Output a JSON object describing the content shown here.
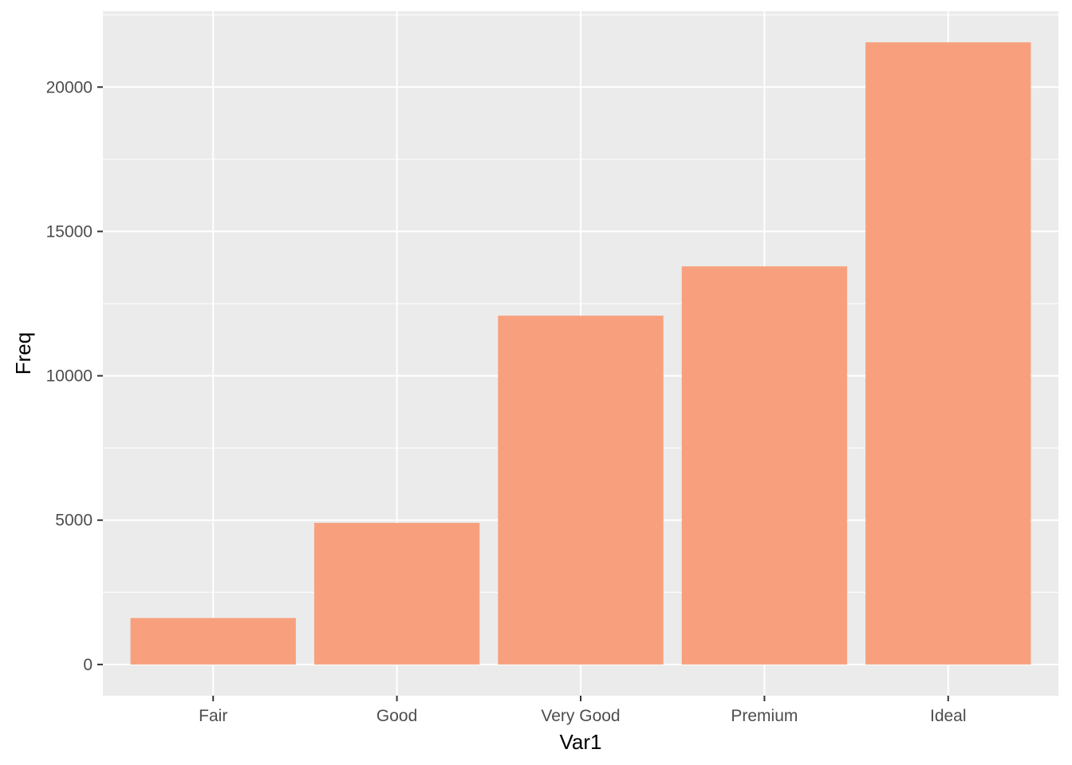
{
  "chart_data": {
    "type": "bar",
    "categories": [
      "Fair",
      "Good",
      "Very Good",
      "Premium",
      "Ideal"
    ],
    "values": [
      1610,
      4906,
      12082,
      13791,
      21551
    ],
    "title": "",
    "xlabel": "Var1",
    "ylabel": "Freq",
    "ylim": [
      -1080,
      22630
    ],
    "yticks": [
      0,
      5000,
      10000,
      15000,
      20000
    ],
    "ytick_labels": [
      "0",
      "5000",
      "10000",
      "15000",
      "20000"
    ],
    "grid": true,
    "legend": "none",
    "colors": {
      "bar_fill": "#F8A07E",
      "panel_background": "#EBEBEB",
      "grid_major": "#FFFFFF",
      "tick_text": "#4D4D4D",
      "axis_title": "#000000"
    }
  }
}
